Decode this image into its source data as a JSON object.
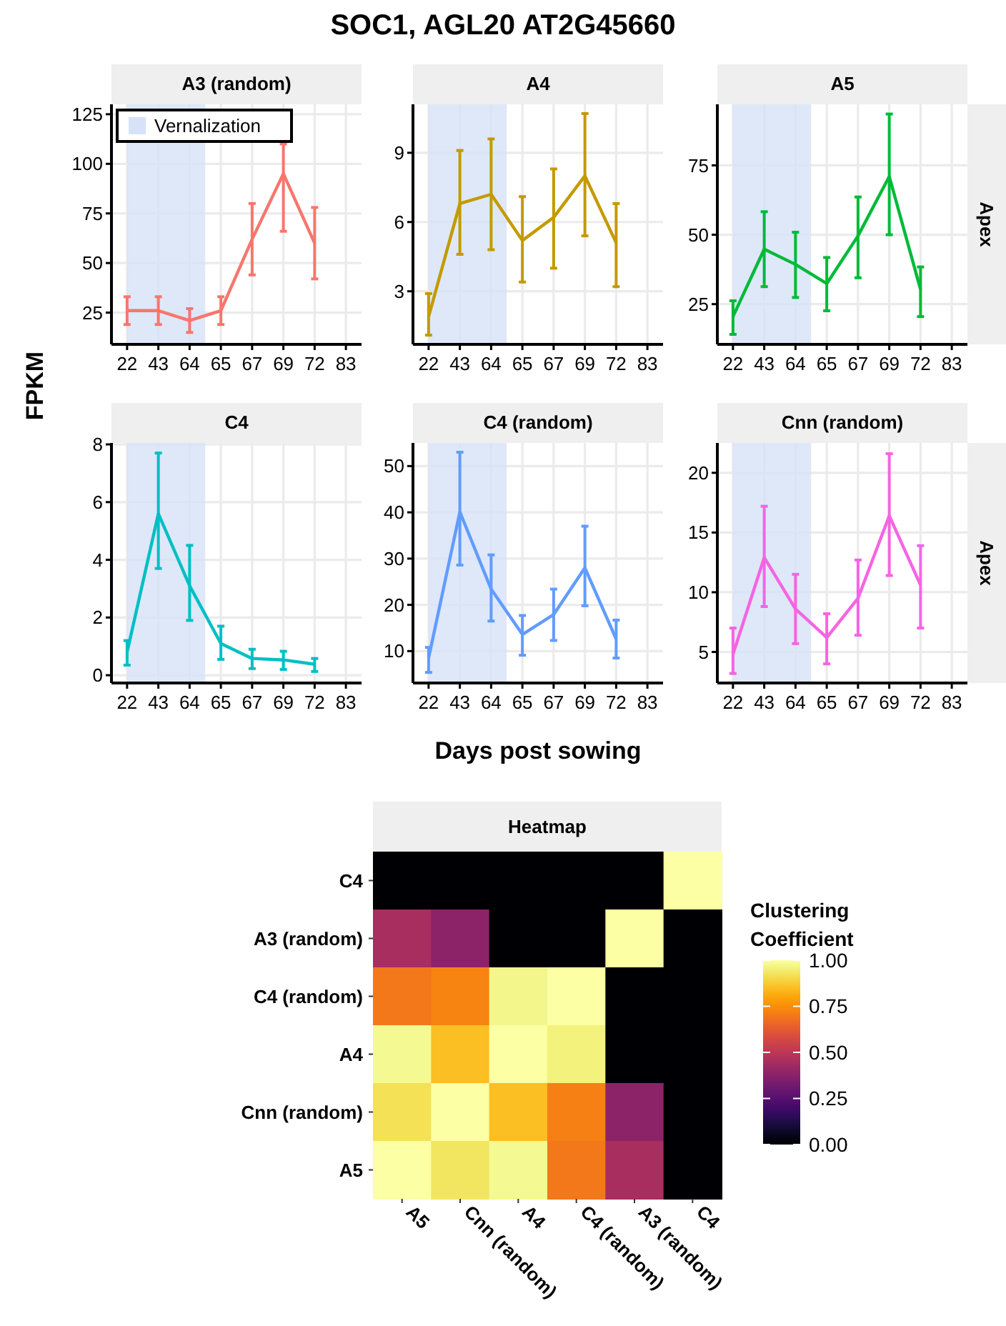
{
  "chart_data": [
    {
      "type": "line",
      "title": "A3 (random)",
      "annotations": [
        "SOC1, AGL20 AT2G45660"
      ],
      "ylabel": "FPKM",
      "categories": [
        "22",
        "43",
        "64",
        "65",
        "67",
        "69",
        "72",
        "83"
      ],
      "series": [
        {
          "color": "#f8766d",
          "values": [
            26,
            26,
            21,
            26,
            62,
            95,
            60,
            null
          ],
          "errors": [
            [
              19,
              33
            ],
            [
              19,
              33
            ],
            [
              15,
              27
            ],
            [
              19,
              33
            ],
            [
              44,
              80
            ],
            [
              66,
              110
            ],
            [
              42,
              78
            ],
            null
          ]
        }
      ],
      "ylim": [
        9,
        130
      ],
      "yticks": [
        25,
        50,
        75,
        100,
        125
      ],
      "grid": true,
      "legend": "top left",
      "marker": "none",
      "bands": [
        {
          "axis": "x",
          "from": "22",
          "to": "64",
          "label": "Vernalization",
          "color": "#d6e2f8"
        }
      ]
    },
    {
      "type": "line",
      "title": "A4",
      "categories": [
        "22",
        "43",
        "64",
        "65",
        "67",
        "69",
        "72",
        "83"
      ],
      "series": [
        {
          "color": "#c49a00",
          "values": [
            1.9,
            6.8,
            7.2,
            5.2,
            6.2,
            8.0,
            5.1,
            null
          ],
          "errors": [
            [
              1.1,
              2.9
            ],
            [
              4.6,
              9.1
            ],
            [
              4.8,
              9.6
            ],
            [
              3.4,
              7.1
            ],
            [
              4.0,
              8.3
            ],
            [
              5.4,
              10.7
            ],
            [
              3.2,
              6.8
            ],
            null
          ]
        }
      ],
      "ylim": [
        0.7,
        11.1
      ],
      "yticks": [
        3,
        6,
        9
      ],
      "grid": true,
      "marker": "none",
      "bands": [
        {
          "axis": "x",
          "from": "22",
          "to": "64",
          "color": "#d6e2f8"
        }
      ]
    },
    {
      "type": "line",
      "title": "A5",
      "annotations": [
        "Apex"
      ],
      "categories": [
        "22",
        "43",
        "64",
        "65",
        "67",
        "69",
        "72",
        "83"
      ],
      "series": [
        {
          "color": "#00ba38",
          "values": [
            20.5,
            44.8,
            39.3,
            32.4,
            49.6,
            71,
            30.3,
            null
          ],
          "errors": [
            [
              14.1,
              26.2
            ],
            [
              31.3,
              58.3
            ],
            [
              27.4,
              50.9
            ],
            [
              22.6,
              41.8
            ],
            [
              34.5,
              63.6
            ],
            [
              50,
              93.5
            ],
            [
              20.5,
              38.4
            ],
            null
          ]
        }
      ],
      "ylim": [
        10.5,
        97
      ],
      "yticks": [
        25,
        50,
        75
      ],
      "grid": true,
      "marker": "none",
      "bands": [
        {
          "axis": "x",
          "from": "22",
          "to": "64",
          "color": "#d6e2f8"
        }
      ]
    },
    {
      "type": "line",
      "title": "C4",
      "categories": [
        "22",
        "43",
        "64",
        "65",
        "67",
        "69",
        "72",
        "83"
      ],
      "series": [
        {
          "color": "#00bfc4",
          "values": [
            0.8,
            5.6,
            3.1,
            1.1,
            0.58,
            0.53,
            0.38,
            null
          ],
          "errors": [
            [
              0.35,
              1.2
            ],
            [
              3.7,
              7.7
            ],
            [
              1.9,
              4.5
            ],
            [
              0.55,
              1.7
            ],
            [
              0.23,
              0.9
            ],
            [
              0.2,
              0.83
            ],
            [
              0.13,
              0.58
            ],
            null
          ]
        }
      ],
      "ylim": [
        -0.27,
        8.05
      ],
      "yticks": [
        0,
        2,
        4,
        6,
        8
      ],
      "grid": true,
      "marker": "none",
      "bands": [
        {
          "axis": "x",
          "from": "22",
          "to": "64",
          "color": "#d6e2f8"
        }
      ]
    },
    {
      "type": "line",
      "title": "C4 (random)",
      "xlabel": "Days post sowing",
      "categories": [
        "22",
        "43",
        "64",
        "65",
        "67",
        "69",
        "72",
        "83"
      ],
      "series": [
        {
          "color": "#619cff",
          "values": [
            8.5,
            40.1,
            23.4,
            13.6,
            17.9,
            28,
            12.6,
            null
          ],
          "errors": [
            [
              5.4,
              10.8
            ],
            [
              28.6,
              53
            ],
            [
              16.5,
              30.8
            ],
            [
              9.1,
              17.7
            ],
            [
              12.3,
              23.4
            ],
            [
              19.8,
              37
            ],
            [
              8.5,
              16.7
            ],
            null
          ]
        }
      ],
      "ylim": [
        3.1,
        55
      ],
      "yticks": [
        10,
        20,
        30,
        40,
        50
      ],
      "grid": true,
      "marker": "none",
      "bands": [
        {
          "axis": "x",
          "from": "22",
          "to": "64",
          "color": "#d6e2f8"
        }
      ]
    },
    {
      "type": "line",
      "title": "Cnn (random)",
      "annotations": [
        "Apex"
      ],
      "categories": [
        "22",
        "43",
        "64",
        "65",
        "67",
        "69",
        "72",
        "83"
      ],
      "series": [
        {
          "color": "#f564e3",
          "values": [
            4.8,
            12.9,
            8.6,
            6.2,
            9.5,
            16.4,
            10.6,
            null
          ],
          "errors": [
            [
              3.2,
              7.0
            ],
            [
              8.8,
              17.2
            ],
            [
              5.7,
              11.5
            ],
            [
              4.0,
              8.2
            ],
            [
              6.4,
              12.7
            ],
            [
              11.4,
              21.6
            ],
            [
              7.0,
              13.9
            ],
            null
          ]
        }
      ],
      "ylim": [
        2.4,
        22.5
      ],
      "yticks": [
        5,
        10,
        15,
        20
      ],
      "grid": true,
      "marker": "none",
      "bands": [
        {
          "axis": "x",
          "from": "22",
          "to": "64",
          "color": "#d6e2f8"
        }
      ]
    },
    {
      "type": "heatmap",
      "title": "Heatmap",
      "clabel": "Clustering Coefficient",
      "categories": [
        "A5",
        "Cnn (random)",
        "A4",
        "C4 (random)",
        "A3 (random)",
        "C4"
      ],
      "y_categories": [
        "C4",
        "A3 (random)",
        "C4 (random)",
        "A4",
        "Cnn (random)",
        "A5"
      ],
      "cells": [
        [
          0,
          0,
          0,
          0,
          0,
          1.0
        ],
        [
          0.45,
          0.38,
          0,
          0,
          1.0,
          0
        ],
        [
          0.7,
          0.73,
          0.97,
          1.0,
          0,
          0
        ],
        [
          0.98,
          0.85,
          1.0,
          0.96,
          0,
          0
        ],
        [
          0.92,
          1.0,
          0.85,
          0.72,
          0.38,
          0
        ],
        [
          1.0,
          0.93,
          0.98,
          0.7,
          0.45,
          0
        ]
      ],
      "clim": [
        0,
        1
      ],
      "cticks": [
        {
          "value": 0,
          "label": "0.00"
        },
        {
          "value": 0.25,
          "label": "0.25"
        },
        {
          "value": 0.5,
          "label": "0.50"
        },
        {
          "value": 0.75,
          "label": "0.75"
        },
        {
          "value": 1,
          "label": "1.00"
        }
      ]
    }
  ]
}
